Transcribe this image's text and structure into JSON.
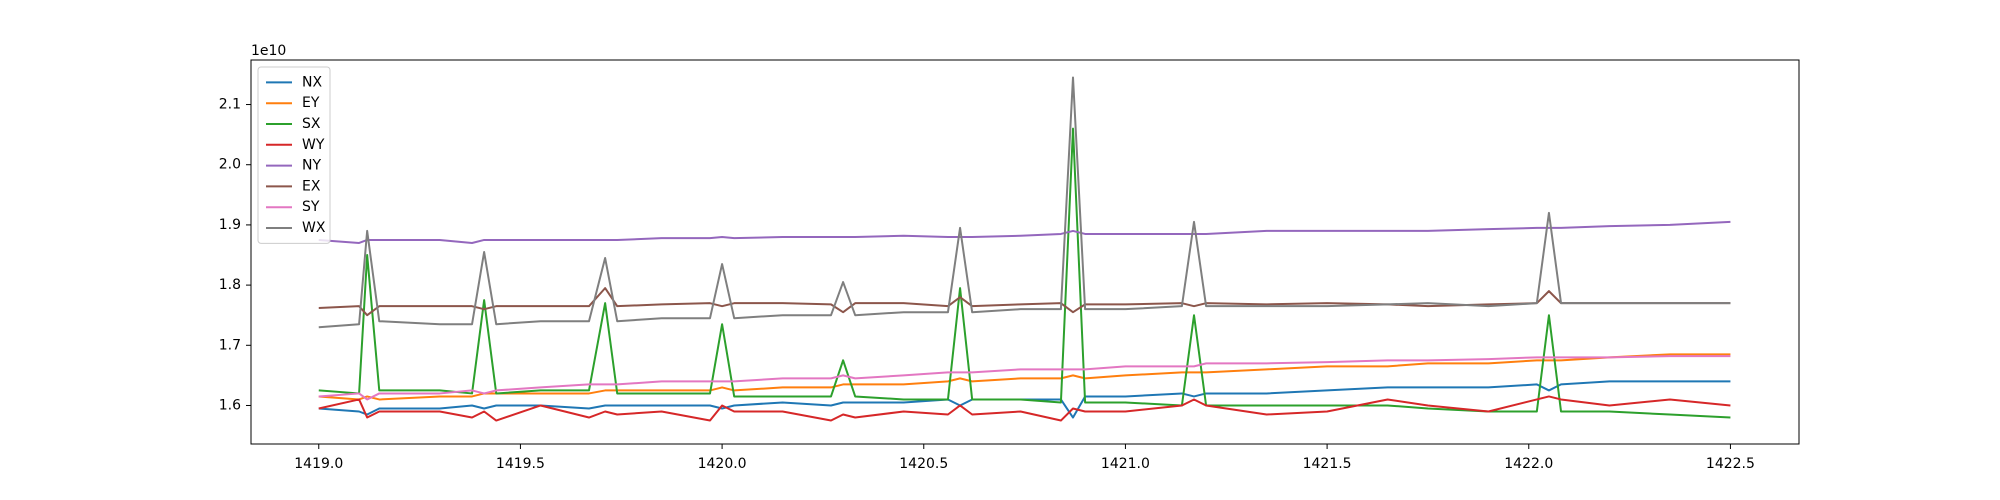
{
  "chart_data": {
    "type": "line",
    "y_offset_label": "1e10",
    "x": [
      1419.0,
      1419.1,
      1419.12,
      1419.15,
      1419.3,
      1419.38,
      1419.41,
      1419.44,
      1419.55,
      1419.67,
      1419.71,
      1419.74,
      1419.85,
      1419.97,
      1420.0,
      1420.03,
      1420.15,
      1420.27,
      1420.3,
      1420.33,
      1420.45,
      1420.56,
      1420.59,
      1420.62,
      1420.74,
      1420.84,
      1420.87,
      1420.9,
      1421.0,
      1421.14,
      1421.17,
      1421.2,
      1421.35,
      1421.5,
      1421.65,
      1421.75,
      1421.9,
      1422.02,
      1422.05,
      1422.08,
      1422.2,
      1422.35,
      1422.5
    ],
    "series": [
      {
        "name": "NX",
        "color": "#1f77b4",
        "values": [
          1.595,
          1.59,
          1.585,
          1.595,
          1.595,
          1.6,
          1.595,
          1.6,
          1.6,
          1.595,
          1.6,
          1.6,
          1.6,
          1.6,
          1.595,
          1.6,
          1.605,
          1.6,
          1.605,
          1.605,
          1.605,
          1.61,
          1.6,
          1.61,
          1.61,
          1.61,
          1.58,
          1.615,
          1.615,
          1.62,
          1.615,
          1.62,
          1.62,
          1.625,
          1.63,
          1.63,
          1.63,
          1.635,
          1.625,
          1.635,
          1.64,
          1.64,
          1.64
        ]
      },
      {
        "name": "EY",
        "color": "#ff7f0e",
        "values": [
          1.615,
          1.61,
          1.615,
          1.61,
          1.615,
          1.615,
          1.62,
          1.62,
          1.62,
          1.62,
          1.625,
          1.625,
          1.625,
          1.625,
          1.63,
          1.625,
          1.63,
          1.63,
          1.635,
          1.635,
          1.635,
          1.64,
          1.645,
          1.64,
          1.645,
          1.645,
          1.65,
          1.645,
          1.65,
          1.655,
          1.655,
          1.655,
          1.66,
          1.665,
          1.665,
          1.67,
          1.67,
          1.675,
          1.675,
          1.675,
          1.68,
          1.685,
          1.685
        ]
      },
      {
        "name": "SX",
        "color": "#2ca02c",
        "values": [
          1.625,
          1.62,
          1.85,
          1.625,
          1.625,
          1.62,
          1.775,
          1.62,
          1.625,
          1.625,
          1.77,
          1.62,
          1.62,
          1.62,
          1.735,
          1.615,
          1.615,
          1.615,
          1.675,
          1.615,
          1.61,
          1.61,
          1.795,
          1.61,
          1.61,
          1.605,
          2.06,
          1.605,
          1.605,
          1.6,
          1.75,
          1.6,
          1.6,
          1.6,
          1.6,
          1.595,
          1.59,
          1.59,
          1.75,
          1.59,
          1.59,
          1.585,
          1.58
        ]
      },
      {
        "name": "WY",
        "color": "#d62728",
        "values": [
          1.595,
          1.61,
          1.58,
          1.59,
          1.59,
          1.58,
          1.59,
          1.575,
          1.6,
          1.58,
          1.59,
          1.585,
          1.59,
          1.575,
          1.6,
          1.59,
          1.59,
          1.575,
          1.585,
          1.58,
          1.59,
          1.585,
          1.6,
          1.585,
          1.59,
          1.575,
          1.595,
          1.59,
          1.59,
          1.6,
          1.61,
          1.6,
          1.585,
          1.59,
          1.61,
          1.6,
          1.59,
          1.61,
          1.615,
          1.61,
          1.6,
          1.61,
          1.6
        ]
      },
      {
        "name": "NY",
        "color": "#9467bd",
        "values": [
          1.875,
          1.87,
          1.875,
          1.875,
          1.875,
          1.87,
          1.875,
          1.875,
          1.875,
          1.875,
          1.875,
          1.875,
          1.878,
          1.878,
          1.88,
          1.878,
          1.88,
          1.88,
          1.88,
          1.88,
          1.882,
          1.88,
          1.88,
          1.88,
          1.882,
          1.885,
          1.89,
          1.885,
          1.885,
          1.885,
          1.885,
          1.885,
          1.89,
          1.89,
          1.89,
          1.89,
          1.893,
          1.895,
          1.895,
          1.895,
          1.898,
          1.9,
          1.905
        ]
      },
      {
        "name": "EX",
        "color": "#8c564b",
        "values": [
          1.762,
          1.765,
          1.75,
          1.765,
          1.765,
          1.765,
          1.76,
          1.765,
          1.765,
          1.765,
          1.795,
          1.765,
          1.768,
          1.77,
          1.765,
          1.77,
          1.77,
          1.768,
          1.755,
          1.77,
          1.77,
          1.765,
          1.78,
          1.765,
          1.768,
          1.77,
          1.755,
          1.768,
          1.768,
          1.77,
          1.765,
          1.77,
          1.768,
          1.77,
          1.768,
          1.765,
          1.768,
          1.77,
          1.79,
          1.77,
          1.77,
          1.77,
          1.77
        ]
      },
      {
        "name": "SY",
        "color": "#e377c2",
        "values": [
          1.615,
          1.62,
          1.61,
          1.62,
          1.62,
          1.625,
          1.62,
          1.625,
          1.63,
          1.635,
          1.635,
          1.635,
          1.64,
          1.64,
          1.64,
          1.64,
          1.645,
          1.645,
          1.65,
          1.645,
          1.65,
          1.655,
          1.655,
          1.655,
          1.66,
          1.66,
          1.66,
          1.66,
          1.665,
          1.665,
          1.665,
          1.67,
          1.67,
          1.672,
          1.675,
          1.675,
          1.677,
          1.68,
          1.68,
          1.68,
          1.68,
          1.682,
          1.682
        ]
      },
      {
        "name": "WX",
        "color": "#7f7f7f",
        "values": [
          1.73,
          1.735,
          1.89,
          1.74,
          1.735,
          1.735,
          1.855,
          1.735,
          1.74,
          1.74,
          1.845,
          1.74,
          1.745,
          1.745,
          1.835,
          1.745,
          1.75,
          1.75,
          1.805,
          1.75,
          1.755,
          1.755,
          1.895,
          1.755,
          1.76,
          1.76,
          2.145,
          1.76,
          1.76,
          1.765,
          1.905,
          1.765,
          1.765,
          1.765,
          1.768,
          1.77,
          1.765,
          1.77,
          1.92,
          1.77,
          1.77,
          1.77,
          1.77
        ]
      }
    ],
    "xlim": [
      1418.832,
      1422.67
    ],
    "ylim": [
      1.536,
      2.174
    ],
    "xticks": [
      {
        "value": 1419,
        "label": "1419.0"
      },
      1419.5,
      {
        "value": 1420,
        "label": "1420.0"
      },
      1420.5,
      {
        "value": 1421,
        "label": "1421.0"
      },
      1421.5,
      {
        "value": 1422,
        "label": "1422.0"
      },
      1422.5
    ],
    "yticks": [
      1.6,
      1.7,
      1.8,
      1.9,
      {
        "value": 2,
        "label": "2.0"
      },
      2.1
    ],
    "grid": false,
    "legend": "upper left"
  }
}
